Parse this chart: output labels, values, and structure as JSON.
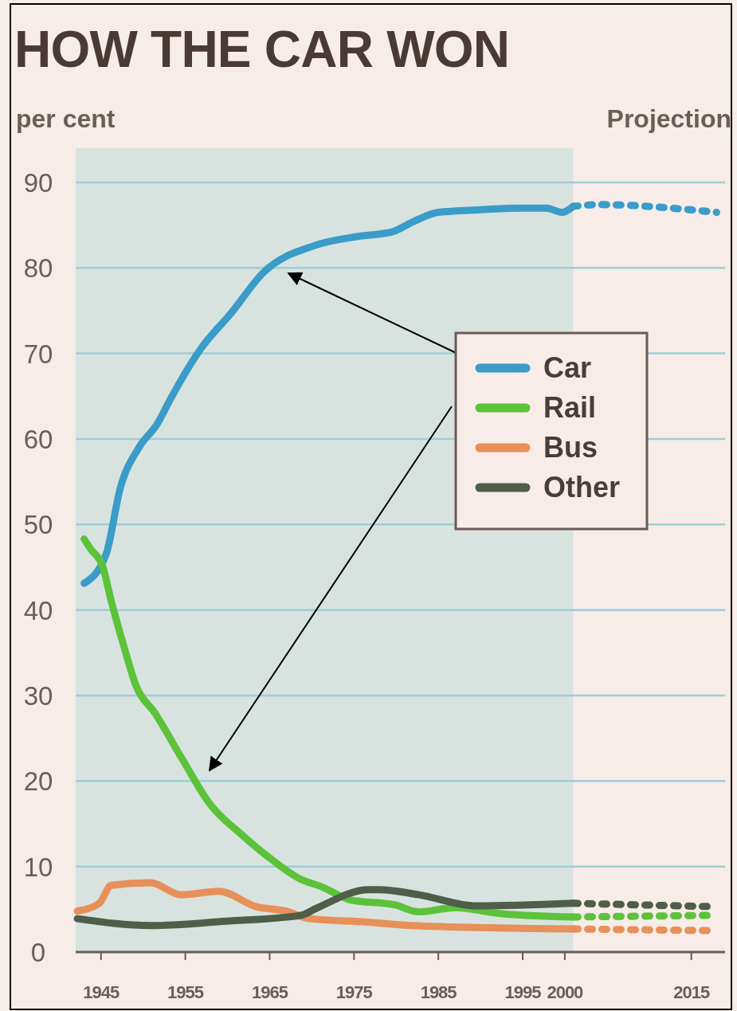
{
  "chart_data": {
    "type": "line",
    "title": "HOW THE CAR WON",
    "ylabel": "per cent",
    "xlim": [
      1942,
      2019
    ],
    "ylim": [
      0,
      94
    ],
    "xticks": [
      1945,
      1955,
      1965,
      1975,
      1985,
      1995,
      2000,
      2015
    ],
    "yticks": [
      0,
      10,
      20,
      30,
      40,
      50,
      60,
      70,
      80,
      90
    ],
    "grid": "y",
    "legend": "right",
    "bands": [
      {
        "axis": "x",
        "from": 1942,
        "to": 2001,
        "label": null,
        "color": "#d8e3e0"
      },
      {
        "axis": "x",
        "from": 2001,
        "to": 2019,
        "label": "Projection",
        "color": "#f7ece8"
      }
    ],
    "series": [
      {
        "name": "Car",
        "color": "#3a9cc8",
        "line_style": "solid",
        "x": [
          1943,
          1945.6,
          1947.3,
          1949.5,
          1951.7,
          1953.2,
          1956.8,
          1960.5,
          1964.3,
          1970.3,
          1975.6,
          1979.5,
          1982,
          1985,
          1990,
          1994.7,
          1997.8,
          1999.7,
          2001
        ],
        "values": [
          43.1,
          46.5,
          54.3,
          59,
          61.8,
          64.6,
          70.5,
          74.8,
          79.5,
          82.6,
          83.7,
          84.2,
          85.4,
          86.5,
          86.8,
          87,
          87,
          86.5,
          87.2
        ]
      },
      {
        "name": "Rail",
        "color": "#5cc23a",
        "line_style": "solid",
        "x": [
          1943,
          1943.8,
          1945.2,
          1946.2,
          1947.7,
          1949.1,
          1951.5,
          1954.5,
          1958,
          1961.6,
          1965,
          1968.7,
          1971,
          1974.6,
          1979.9,
          1982.7,
          1987,
          1992.4,
          2001
        ],
        "values": [
          48.3,
          47.1,
          45.1,
          41.1,
          35.8,
          31.3,
          27.8,
          22.8,
          17.2,
          13.8,
          11,
          8.5,
          7.7,
          6.1,
          5.5,
          4.7,
          5.2,
          4.5,
          4.1
        ]
      },
      {
        "name": "Bus",
        "color": "#e8905a",
        "line_style": "solid",
        "x": [
          1942.2,
          1944.8,
          1946.2,
          1950.9,
          1954.5,
          1959,
          1963.4,
          1966.9,
          1969.7,
          1976.7,
          1981.7,
          2001
        ],
        "values": [
          4.8,
          5.7,
          7.8,
          8.1,
          6.7,
          7.1,
          5.3,
          4.8,
          3.9,
          3.5,
          3.1,
          2.7
        ]
      },
      {
        "name": "Other",
        "color": "#4e5e48",
        "line_style": "solid",
        "x": [
          1942.2,
          1950.9,
          1959.8,
          1968.7,
          1970.5,
          1976.7,
          1978.1,
          1982.7,
          1989.5,
          2001
        ],
        "values": [
          3.9,
          3.1,
          3.6,
          4.3,
          5.1,
          7.3,
          7.3,
          6.7,
          5.4,
          5.7
        ]
      },
      {
        "color": "#3a9cc8",
        "line_style": "dashed",
        "x": [
          2001,
          2004,
          2018
        ],
        "values": [
          87.2,
          87.4,
          86.5
        ]
      },
      {
        "color": "#5cc23a",
        "line_style": "dashed",
        "x": [
          2001,
          2018
        ],
        "values": [
          4.1,
          4.3
        ]
      },
      {
        "color": "#e8905a",
        "line_style": "dashed",
        "x": [
          2001,
          2018
        ],
        "values": [
          2.7,
          2.5
        ]
      },
      {
        "color": "#4e5e48",
        "line_style": "dashed",
        "x": [
          2001,
          2018
        ],
        "values": [
          5.7,
          5.3
        ]
      }
    ]
  }
}
